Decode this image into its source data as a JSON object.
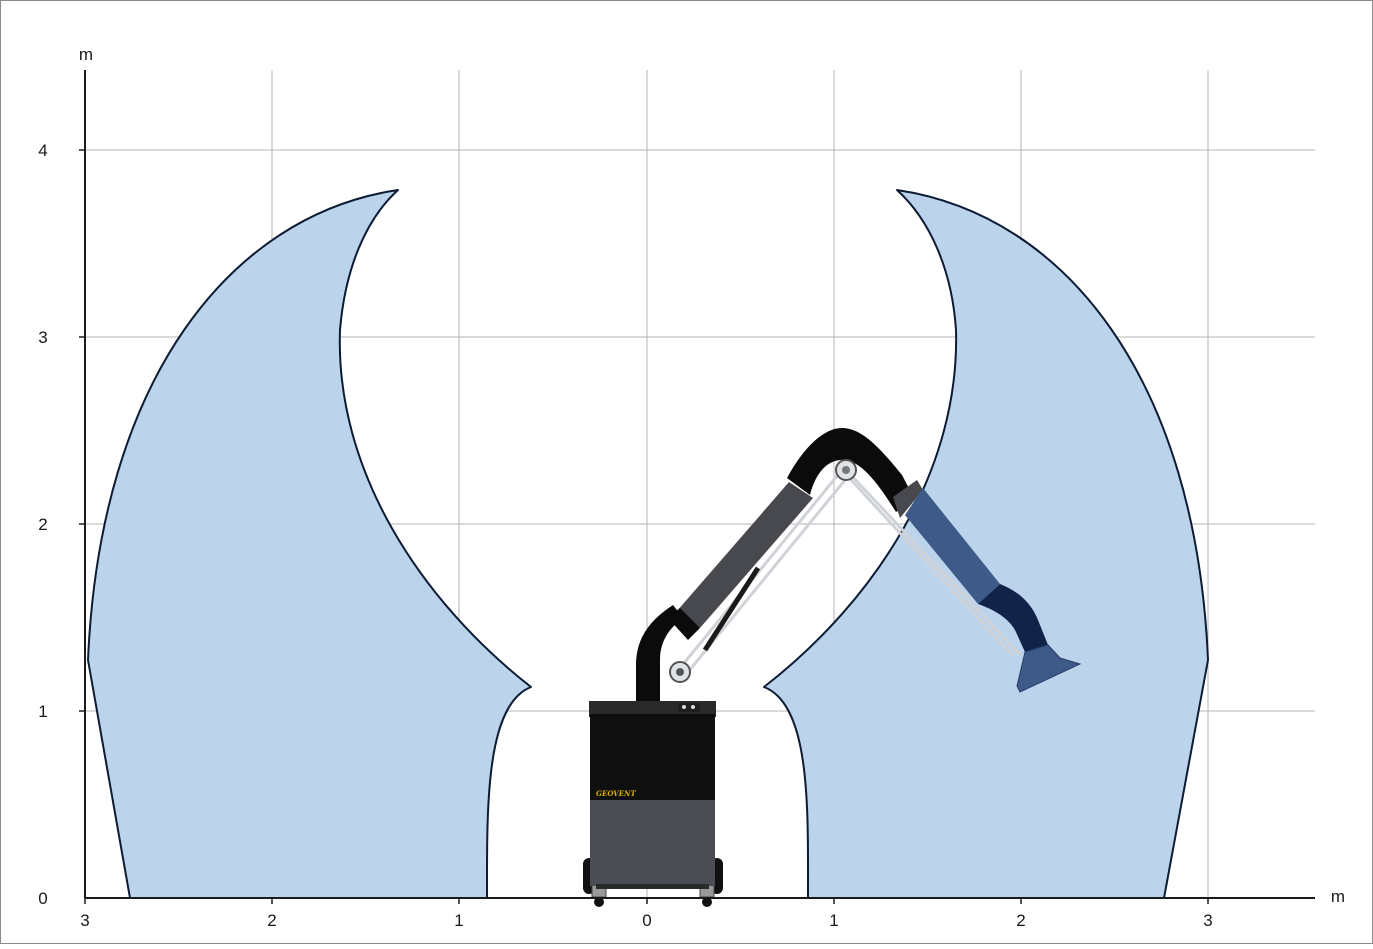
{
  "diagram": {
    "axes": {
      "x_unit": "m",
      "y_unit": "m",
      "x_tick_labels": [
        "3",
        "2",
        "1",
        "0",
        "1",
        "2",
        "3"
      ],
      "y_tick_labels": [
        "0",
        "1",
        "2",
        "3",
        "4"
      ]
    },
    "grid": true,
    "reach_zone_color": "#bcd3ec",
    "reach_zone_outline": "#0d1b33",
    "unit": {
      "brand_label": "GEOVENT",
      "cabinet_top_color": "#0f0f0f",
      "cabinet_bottom_color": "#4a4d53",
      "arm_color": "#47494f",
      "hose_color": "#0b0b0b",
      "arm_in_zone_color": "#3e5a88",
      "hood_color": "#3e5a88"
    }
  }
}
